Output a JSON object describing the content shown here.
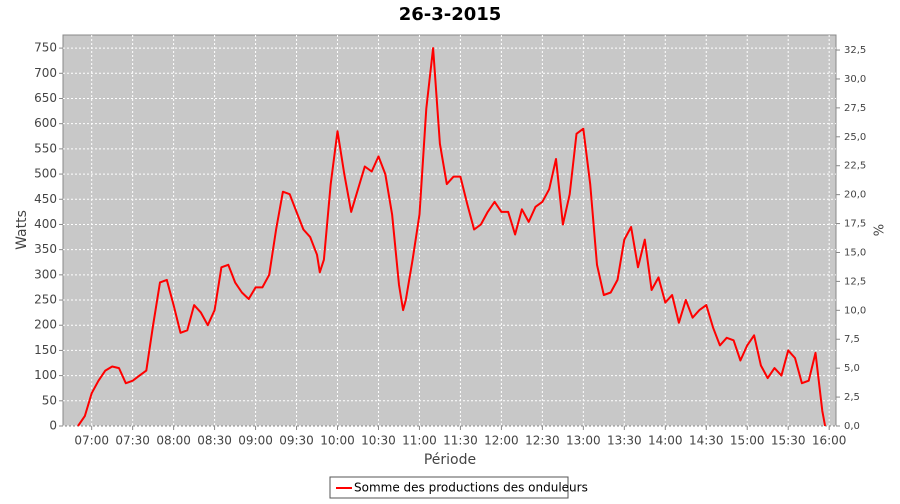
{
  "chart_data": {
    "type": "line",
    "title": "26-3-2015",
    "ylabel": "Watts",
    "xlabel": "Période",
    "y2label": "%",
    "x": [
      "06:50",
      "06:55",
      "07:00",
      "07:05",
      "07:10",
      "07:15",
      "07:20",
      "07:25",
      "07:30",
      "07:35",
      "07:40",
      "07:45",
      "07:50",
      "07:55",
      "08:00",
      "08:05",
      "08:10",
      "08:15",
      "08:20",
      "08:25",
      "08:30",
      "08:35",
      "08:40",
      "08:45",
      "08:50",
      "08:55",
      "09:00",
      "09:05",
      "09:10",
      "09:15",
      "09:20",
      "09:25",
      "09:30",
      "09:35",
      "09:40",
      "09:45",
      "09:47",
      "09:50",
      "09:55",
      "10:00",
      "10:05",
      "10:10",
      "10:15",
      "10:20",
      "10:25",
      "10:30",
      "10:35",
      "10:40",
      "10:45",
      "10:48",
      "10:50",
      "10:55",
      "11:00",
      "11:05",
      "11:10",
      "11:15",
      "11:20",
      "11:25",
      "11:30",
      "11:35",
      "11:40",
      "11:45",
      "11:50",
      "11:55",
      "12:00",
      "12:05",
      "12:10",
      "12:15",
      "12:20",
      "12:25",
      "12:30",
      "12:35",
      "12:40",
      "12:45",
      "12:50",
      "12:55",
      "13:00",
      "13:05",
      "13:10",
      "13:15",
      "13:20",
      "13:25",
      "13:30",
      "13:35",
      "13:40",
      "13:45",
      "13:50",
      "13:55",
      "14:00",
      "14:05",
      "14:10",
      "14:15",
      "14:20",
      "14:25",
      "14:30",
      "14:35",
      "14:40",
      "14:45",
      "14:50",
      "14:55",
      "15:00",
      "15:05",
      "15:10",
      "15:15",
      "15:20",
      "15:25",
      "15:30",
      "15:35",
      "15:40",
      "15:45",
      "15:50",
      "15:55",
      "15:57"
    ],
    "series": [
      {
        "name": "Somme des productions des onduleurs",
        "color": "#ff0000",
        "values": [
          0,
          20,
          65,
          90,
          110,
          118,
          115,
          85,
          90,
          100,
          110,
          200,
          285,
          290,
          240,
          185,
          190,
          240,
          225,
          200,
          230,
          315,
          320,
          285,
          265,
          252,
          275,
          275,
          300,
          390,
          465,
          460,
          425,
          390,
          375,
          340,
          305,
          330,
          480,
          585,
          500,
          425,
          470,
          515,
          505,
          535,
          500,
          420,
          280,
          230,
          250,
          330,
          420,
          630,
          750,
          560,
          480,
          495,
          495,
          440,
          390,
          400,
          425,
          445,
          425,
          425,
          380,
          430,
          405,
          435,
          445,
          470,
          530,
          400,
          460,
          580,
          590,
          480,
          320,
          260,
          265,
          290,
          370,
          395,
          315,
          370,
          270,
          295,
          245,
          260,
          205,
          250,
          215,
          230,
          240,
          195,
          160,
          175,
          170,
          130,
          160,
          180,
          120,
          95,
          115,
          100,
          150,
          135,
          85,
          90,
          145,
          30,
          0
        ]
      }
    ],
    "xlim": [
      "06:39",
      "16:05"
    ],
    "xticks": [
      "07:00",
      "07:30",
      "08:00",
      "08:30",
      "09:00",
      "09:30",
      "10:00",
      "10:30",
      "11:00",
      "11:30",
      "12:00",
      "12:30",
      "13:00",
      "13:30",
      "14:00",
      "14:30",
      "15:00",
      "15:30",
      "16:00"
    ],
    "ylim": [
      0,
      776
    ],
    "yticks": [
      0,
      50,
      100,
      150,
      200,
      250,
      300,
      350,
      400,
      450,
      500,
      550,
      600,
      650,
      700,
      750
    ],
    "y2lim": [
      0,
      33.8
    ],
    "y2ticks": [
      {
        "value": 0,
        "label": "0,0"
      },
      {
        "value": 2.5,
        "label": "2,5"
      },
      {
        "value": 5,
        "label": "5,0"
      },
      {
        "value": 7.5,
        "label": "7,5"
      },
      {
        "value": 10,
        "label": "10,0"
      },
      {
        "value": 12.5,
        "label": "12,5"
      },
      {
        "value": 15,
        "label": "15,0"
      },
      {
        "value": 17.5,
        "label": "17,5"
      },
      {
        "value": 20,
        "label": "20,0"
      },
      {
        "value": 22.5,
        "label": "22,5"
      },
      {
        "value": 25,
        "label": "25,0"
      },
      {
        "value": 27.5,
        "label": "27,5"
      },
      {
        "value": 30,
        "label": "30,0"
      },
      {
        "value": 32.5,
        "label": "32,5"
      }
    ],
    "grid": true,
    "legend": "bottom"
  }
}
